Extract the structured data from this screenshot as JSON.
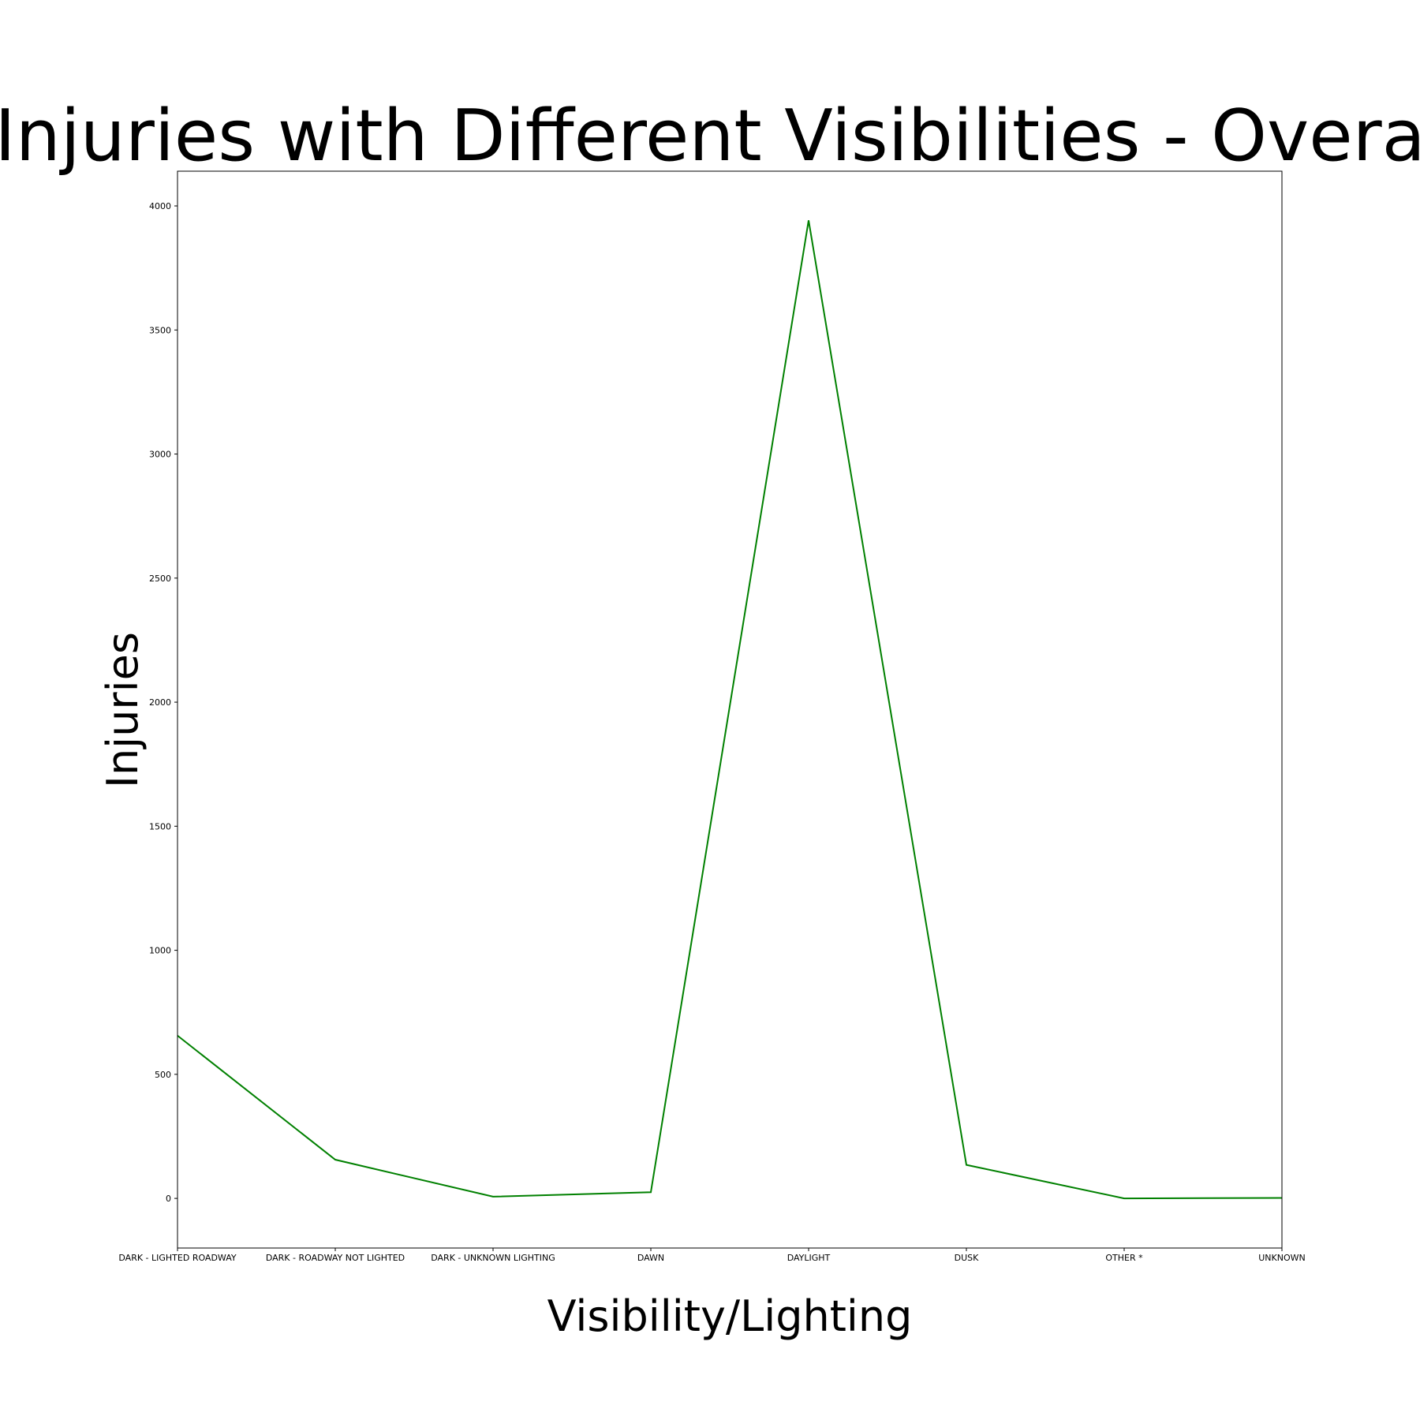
{
  "chart_data": {
    "type": "line",
    "title": "Injuries with Different Visibilities - Overall",
    "xlabel": "Visibility/Lighting",
    "ylabel": "Injuries",
    "categories": [
      "DARK - LIGHTED ROADWAY",
      "DARK - ROADWAY NOT LIGHTED",
      "DARK - UNKNOWN LIGHTING",
      "DAWN",
      "DAYLIGHT",
      "DUSK",
      "OTHER *",
      "UNKNOWN"
    ],
    "series": [
      {
        "color": "#008000",
        "values": [
          656,
          156,
          7,
          25,
          3942,
          135,
          0,
          2
        ]
      }
    ],
    "yticks": [
      0,
      500,
      1000,
      1500,
      2000,
      2500,
      3000,
      3500,
      4000
    ],
    "ylim": [
      -200,
      4140
    ],
    "grid": false,
    "legend": "none"
  }
}
